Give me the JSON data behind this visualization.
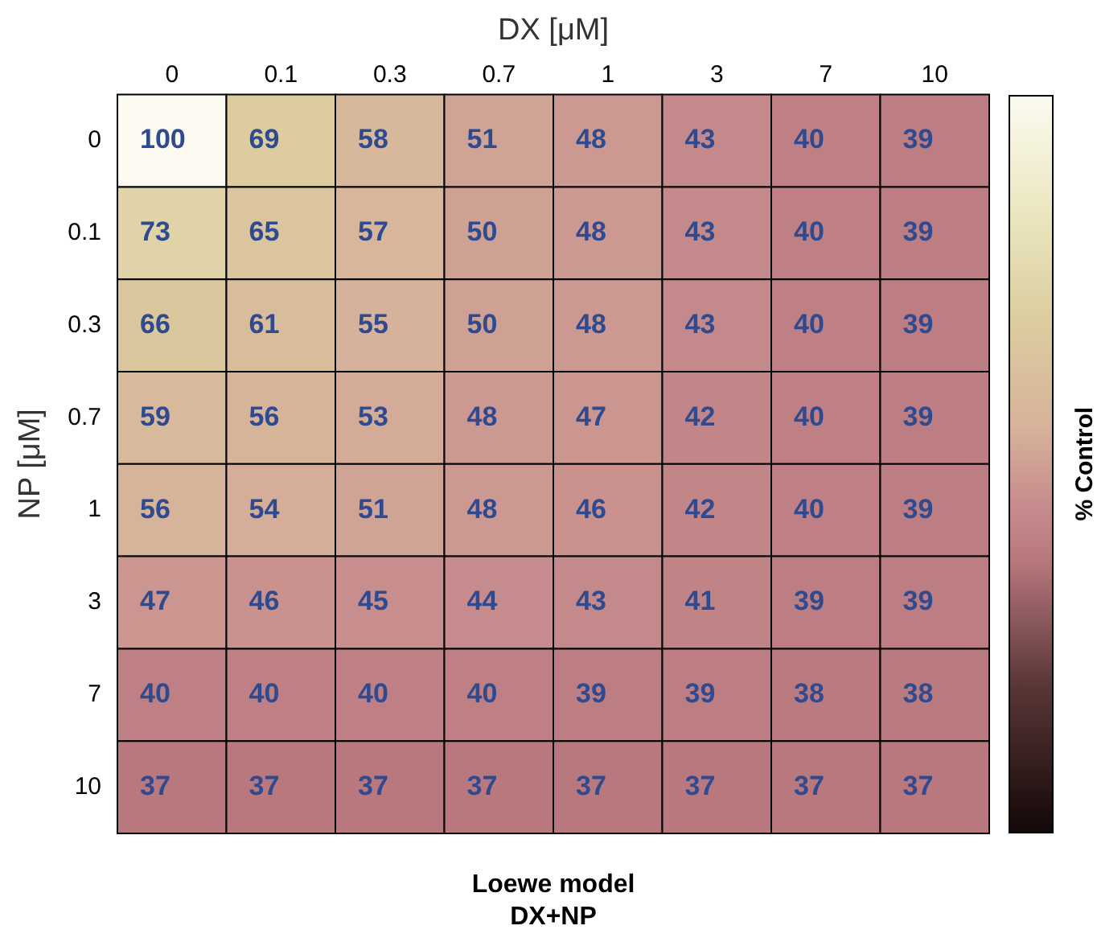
{
  "chart_data": {
    "type": "heatmap",
    "title": "Loewe model",
    "subtitle": "DX+NP",
    "xlabel": "DX [μM]",
    "ylabel": "NP [μM]",
    "clabel": "% Control",
    "data_labels": true,
    "categories": [
      "0",
      "0.1",
      "0.3",
      "0.7",
      "1",
      "3",
      "7",
      "10"
    ],
    "y_categories": [
      "0",
      "0.1",
      "0.3",
      "0.7",
      "1",
      "3",
      "7",
      "10"
    ],
    "cells": [
      [
        100,
        69,
        58,
        51,
        48,
        43,
        40,
        39
      ],
      [
        73,
        65,
        57,
        50,
        48,
        43,
        40,
        39
      ],
      [
        66,
        61,
        55,
        50,
        48,
        43,
        40,
        39
      ],
      [
        59,
        56,
        53,
        48,
        47,
        42,
        40,
        39
      ],
      [
        56,
        54,
        51,
        48,
        46,
        42,
        40,
        39
      ],
      [
        47,
        46,
        45,
        44,
        43,
        41,
        39,
        39
      ],
      [
        40,
        40,
        40,
        40,
        39,
        39,
        38,
        38
      ],
      [
        37,
        37,
        37,
        37,
        37,
        37,
        37,
        37
      ]
    ]
  }
}
